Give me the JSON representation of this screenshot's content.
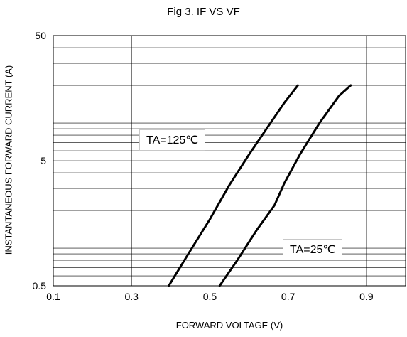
{
  "chart_data": {
    "type": "line",
    "title": "Fig 3. IF VS VF",
    "xlabel": "FORWARD VOLTAGE (V)",
    "ylabel": "INSTANTANEOUS FORWARD CURRENT (A)",
    "xlim": [
      0.1,
      1.0
    ],
    "ylim": [
      0.5,
      50
    ],
    "yscale": "log",
    "grid": true,
    "xticks": [
      "0.1",
      "0.3",
      "0.5",
      "0.7",
      "0.9"
    ],
    "yticks": [
      "0.5",
      "5",
      "50"
    ],
    "series": [
      {
        "name": "TA=125℃",
        "x": [
          0.395,
          0.445,
          0.5,
          0.55,
          0.6,
          0.65,
          0.69,
          0.725
        ],
        "y": [
          0.5,
          0.9,
          1.7,
          3.2,
          5.6,
          9.5,
          14.5,
          20
        ]
      },
      {
        "name": "TA=25℃",
        "x": [
          0.525,
          0.57,
          0.62,
          0.665,
          0.69,
          0.73,
          0.78,
          0.83,
          0.86
        ],
        "y": [
          0.5,
          0.8,
          1.4,
          2.2,
          3.3,
          5.6,
          10,
          16.5,
          20
        ]
      }
    ]
  }
}
